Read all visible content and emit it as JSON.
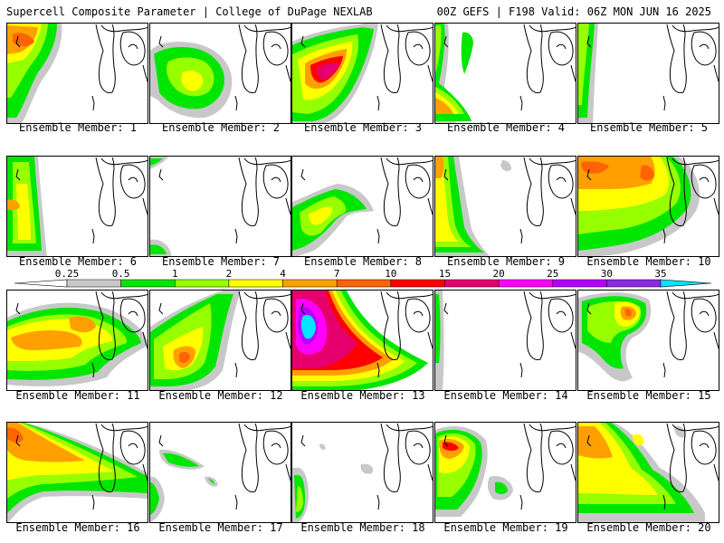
{
  "header": {
    "left_title": "Supercell Composite Parameter | College of DuPage NEXLAB",
    "right_title": "00Z GEFS | F198 Valid: 06Z MON JUN 16 2025"
  },
  "colorbar": {
    "labels": [
      "0.25",
      "0.5",
      "1",
      "2",
      "4",
      "7",
      "10",
      "15",
      "20",
      "25",
      "30",
      "35"
    ],
    "colors": [
      "#c8c8c8",
      "#00e600",
      "#96ff00",
      "#ffff00",
      "#ffa000",
      "#ff6400",
      "#ff0000",
      "#e6006e",
      "#ff00ff",
      "#b400ff",
      "#8a2be2",
      "#00e5ff"
    ]
  },
  "members": [
    {
      "label": "Ensemble Member: 1"
    },
    {
      "label": "Ensemble Member: 2"
    },
    {
      "label": "Ensemble Member: 3"
    },
    {
      "label": "Ensemble Member: 4"
    },
    {
      "label": "Ensemble Member: 5"
    },
    {
      "label": "Ensemble Member: 6"
    },
    {
      "label": "Ensemble Member: 7"
    },
    {
      "label": "Ensemble Member: 8"
    },
    {
      "label": "Ensemble Member: 9"
    },
    {
      "label": "Ensemble Member: 10"
    },
    {
      "label": "Ensemble Member: 11"
    },
    {
      "label": "Ensemble Member: 12"
    },
    {
      "label": "Ensemble Member: 13"
    },
    {
      "label": "Ensemble Member: 14"
    },
    {
      "label": "Ensemble Member: 15"
    },
    {
      "label": "Ensemble Member: 16"
    },
    {
      "label": "Ensemble Member: 17"
    },
    {
      "label": "Ensemble Member: 18"
    },
    {
      "label": "Ensemble Member: 19"
    },
    {
      "label": "Ensemble Member: 20"
    }
  ]
}
